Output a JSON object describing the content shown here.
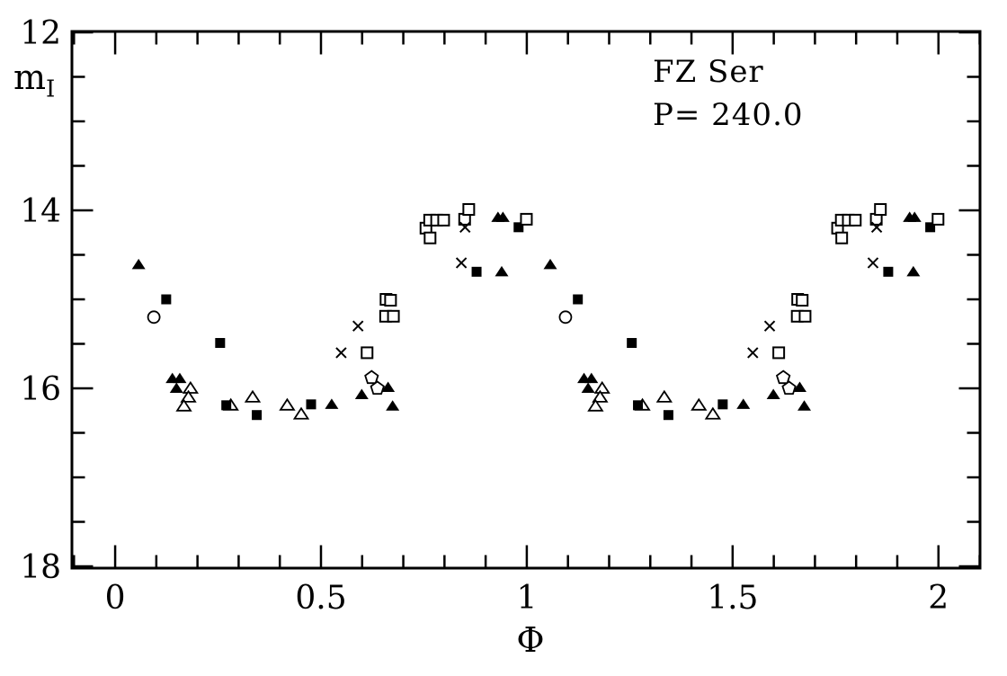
{
  "figure": {
    "background": "#ffffff",
    "ink": "#000000"
  },
  "chart_data": {
    "type": "scatter",
    "title": "FZ Ser",
    "subtitle": "P= 240.0",
    "xlabel": "Φ",
    "ylabel_base": "m",
    "ylabel_sub": "I",
    "grid": false,
    "legend": null,
    "x_axis": {
      "min": -0.105,
      "max": 2.101,
      "major_ticks": [
        0,
        0.5,
        1,
        1.5,
        2
      ],
      "major_labels": [
        "0",
        "0.5",
        "1",
        "1.5",
        "2"
      ],
      "minor_step": 0.1
    },
    "y_axis": {
      "min": 11.99,
      "max": 18.02,
      "major_ticks": [
        12,
        14,
        16,
        18
      ],
      "major_labels": [
        "12",
        "14",
        "16",
        "18"
      ],
      "minor_step": 0.5,
      "inverted": true
    },
    "series": [
      {
        "name": "filled-triangle",
        "marker": "filled-triangle",
        "points": [
          [
            0.057,
            14.61
          ],
          [
            0.139,
            15.89
          ],
          [
            0.157,
            15.89
          ],
          [
            0.149,
            16.0
          ],
          [
            0.526,
            16.18
          ],
          [
            0.599,
            16.07
          ],
          [
            0.663,
            15.99
          ],
          [
            0.674,
            16.2
          ],
          [
            0.93,
            14.08
          ],
          [
            0.942,
            14.08
          ],
          [
            0.939,
            14.69
          ],
          [
            1.057,
            14.61
          ],
          [
            1.139,
            15.89
          ],
          [
            1.157,
            15.89
          ],
          [
            1.149,
            16.0
          ],
          [
            1.526,
            16.18
          ],
          [
            1.599,
            16.07
          ],
          [
            1.663,
            15.99
          ],
          [
            1.674,
            16.2
          ],
          [
            1.93,
            14.08
          ],
          [
            1.942,
            14.08
          ],
          [
            1.939,
            14.69
          ]
        ]
      },
      {
        "name": "open-triangle",
        "marker": "open-triangle",
        "points": [
          [
            0.183,
            16.0
          ],
          [
            0.178,
            16.1
          ],
          [
            0.167,
            16.2
          ],
          [
            0.281,
            16.19
          ],
          [
            0.334,
            16.1
          ],
          [
            0.418,
            16.19
          ],
          [
            0.452,
            16.29
          ],
          [
            1.183,
            16.0
          ],
          [
            1.178,
            16.1
          ],
          [
            1.167,
            16.2
          ],
          [
            1.281,
            16.19
          ],
          [
            1.334,
            16.1
          ],
          [
            1.418,
            16.19
          ],
          [
            1.452,
            16.29
          ]
        ]
      },
      {
        "name": "filled-square",
        "marker": "filled-square",
        "points": [
          [
            0.124,
            15.0
          ],
          [
            0.255,
            15.49
          ],
          [
            0.27,
            16.19
          ],
          [
            0.344,
            16.3
          ],
          [
            0.476,
            16.18
          ],
          [
            0.878,
            14.69
          ],
          [
            0.98,
            14.19
          ],
          [
            1.124,
            15.0
          ],
          [
            1.255,
            15.49
          ],
          [
            1.27,
            16.19
          ],
          [
            1.344,
            16.3
          ],
          [
            1.476,
            16.18
          ],
          [
            1.878,
            14.69
          ],
          [
            1.98,
            14.19
          ]
        ]
      },
      {
        "name": "open-square",
        "marker": "open-square",
        "points": [
          [
            0.612,
            15.6
          ],
          [
            0.657,
            15.19
          ],
          [
            0.676,
            15.19
          ],
          [
            0.658,
            15.0
          ],
          [
            0.669,
            15.01
          ],
          [
            0.755,
            14.2
          ],
          [
            0.765,
            14.31
          ],
          [
            0.764,
            14.11
          ],
          [
            0.781,
            14.11
          ],
          [
            0.798,
            14.11
          ],
          [
            0.849,
            14.1
          ],
          [
            0.859,
            13.99
          ],
          [
            0.999,
            14.1
          ],
          [
            1.612,
            15.6
          ],
          [
            1.657,
            15.19
          ],
          [
            1.676,
            15.19
          ],
          [
            1.658,
            15.0
          ],
          [
            1.669,
            15.01
          ],
          [
            1.755,
            14.2
          ],
          [
            1.765,
            14.31
          ],
          [
            1.764,
            14.11
          ],
          [
            1.781,
            14.11
          ],
          [
            1.798,
            14.11
          ],
          [
            1.849,
            14.1
          ],
          [
            1.859,
            13.99
          ],
          [
            1.999,
            14.1
          ]
        ]
      },
      {
        "name": "open-circle",
        "marker": "open-circle",
        "points": [
          [
            0.094,
            15.2
          ],
          [
            1.094,
            15.2
          ]
        ]
      },
      {
        "name": "cross",
        "marker": "cross",
        "points": [
          [
            0.549,
            15.6
          ],
          [
            0.59,
            15.3
          ],
          [
            0.841,
            14.59
          ],
          [
            0.85,
            14.19
          ],
          [
            1.549,
            15.6
          ],
          [
            1.59,
            15.3
          ],
          [
            1.841,
            14.59
          ],
          [
            1.85,
            14.19
          ]
        ]
      },
      {
        "name": "open-pentagon",
        "marker": "open-pentagon",
        "points": [
          [
            0.623,
            15.88
          ],
          [
            0.637,
            16.0
          ],
          [
            1.623,
            15.88
          ],
          [
            1.637,
            16.0
          ]
        ]
      }
    ]
  }
}
